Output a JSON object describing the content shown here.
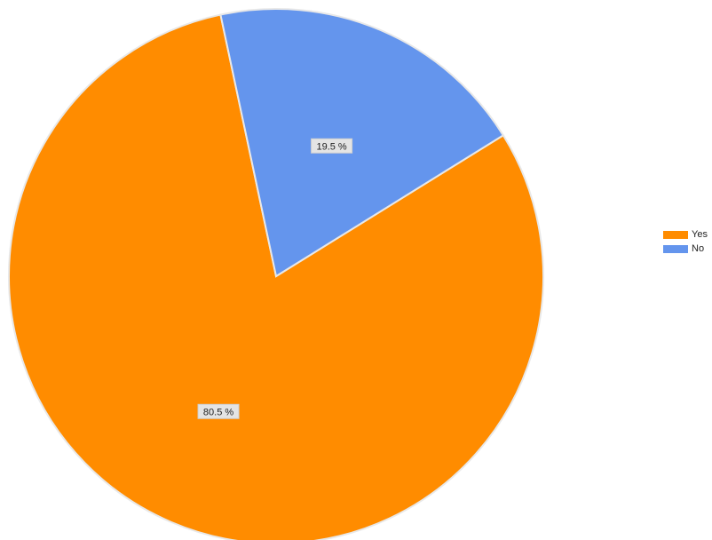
{
  "chart_data": {
    "type": "pie",
    "categories": [
      "Yes",
      "No"
    ],
    "values": [
      80.5,
      19.5
    ],
    "value_labels": [
      "80.5 %",
      "19.5 %"
    ],
    "colors": [
      "#FF8C00",
      "#6495ED"
    ],
    "title": "",
    "legend_position": "right"
  }
}
